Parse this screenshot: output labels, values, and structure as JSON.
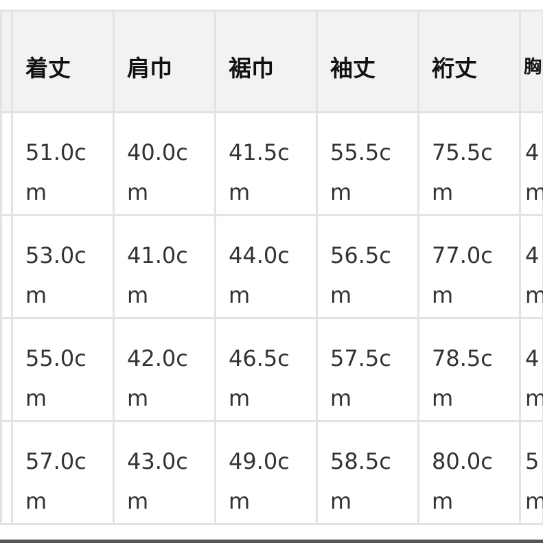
{
  "table": {
    "headers": [
      "",
      "着丈",
      "肩巾",
      "裾巾",
      "袖丈",
      "裄丈",
      "胸"
    ],
    "rows": [
      [
        "",
        "51.0cm",
        "40.0cm",
        "41.5cm",
        "55.5cm",
        "75.5cm",
        "4m"
      ],
      [
        "",
        "53.0cm",
        "41.0cm",
        "44.0cm",
        "56.5cm",
        "77.0cm",
        "4m"
      ],
      [
        "",
        "55.0cm",
        "42.0cm",
        "46.5cm",
        "57.5cm",
        "78.5cm",
        "4m"
      ],
      [
        "",
        "57.0cm",
        "43.0cm",
        "49.0cm",
        "58.5cm",
        "80.0cm",
        "5m"
      ]
    ]
  }
}
